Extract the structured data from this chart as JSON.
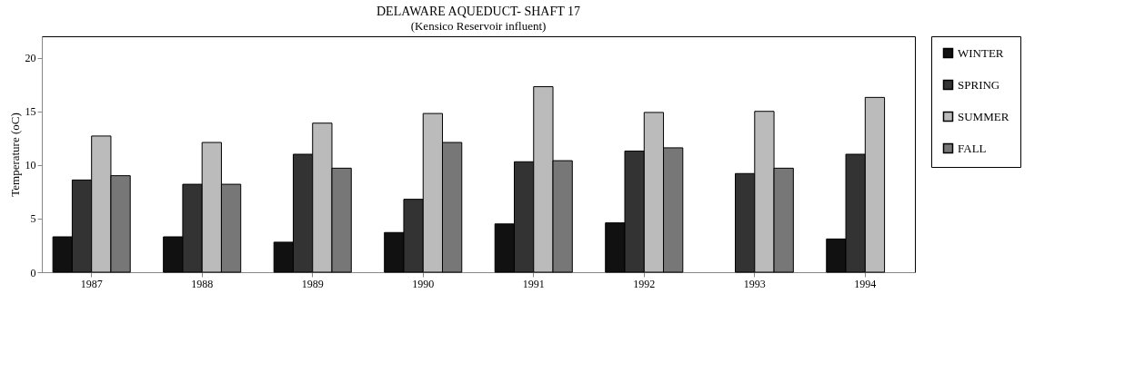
{
  "chart_data": {
    "type": "bar",
    "title": "DELAWARE AQUEDUCT- SHAFT 17",
    "subtitle": "(Kensico Reservoir influent)",
    "ylabel": "Temperature (oC)",
    "categories": [
      "1987",
      "1988",
      "1989",
      "1990",
      "1991",
      "1992",
      "1993",
      "1994"
    ],
    "series": [
      {
        "name": "WINTER",
        "color": "#111111",
        "values": [
          3.3,
          3.3,
          2.8,
          3.7,
          4.5,
          4.6,
          null,
          3.1
        ]
      },
      {
        "name": "SPRING",
        "color": "#333333",
        "values": [
          8.6,
          8.2,
          11.0,
          6.8,
          10.3,
          11.3,
          9.2,
          11.0
        ]
      },
      {
        "name": "SUMMER",
        "color": "#bbbbbb",
        "values": [
          12.7,
          12.1,
          13.9,
          14.8,
          17.3,
          14.9,
          15.0,
          16.3
        ]
      },
      {
        "name": "FALL",
        "color": "#777777",
        "values": [
          9.0,
          8.2,
          9.7,
          12.1,
          10.4,
          11.6,
          9.7,
          null
        ]
      }
    ],
    "ylim": [
      0,
      22
    ],
    "yticks": [
      0,
      5,
      10,
      15,
      20
    ],
    "legend": "right"
  }
}
